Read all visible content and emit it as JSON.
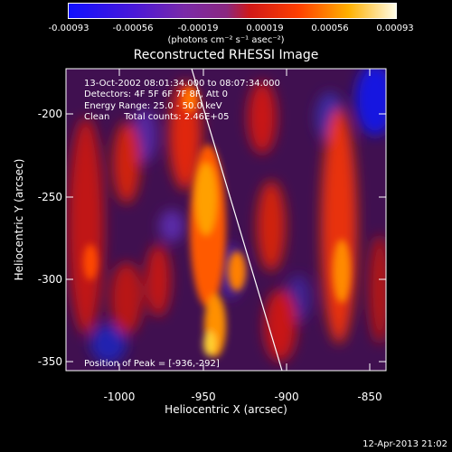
{
  "colorbar": {
    "ticks": [
      "-0.00093",
      "-0.00056",
      "-0.00019",
      "0.00019",
      "0.00056",
      "0.00093"
    ],
    "units": "(photons cm⁻² s⁻¹ asec⁻²)"
  },
  "plot": {
    "title": "Reconstructed RHESSI Image",
    "xlabel": "Heliocentric X (arcsec)",
    "ylabel": "Heliocentric Y (arcsec)",
    "xticks": [
      "-1000",
      "-950",
      "-900",
      "-850"
    ],
    "yticks": [
      "-200",
      "-250",
      "-300",
      "-350"
    ],
    "xlim": [
      -1020,
      -825
    ],
    "ylim": [
      -365,
      -175
    ]
  },
  "info": {
    "line1": "13-Oct-2002 08:01:34.000 to 08:07:34.000",
    "line2": "Detectors: 4F 5F 6F 7F 8F, Att 0",
    "line3": "Energy Range: 25.0 - 50.0 keV",
    "line4": "Clean     Total counts: 2.46E+05"
  },
  "peak": "Position of Peak = [-936,-292]",
  "timestamp": "12-Apr-2013 21:02"
}
